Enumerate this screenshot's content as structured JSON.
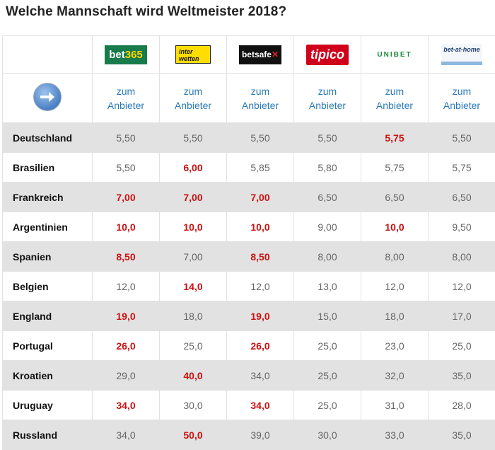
{
  "title": "Welche Mannschaft wird Weltmeister 2018?",
  "bookmakers": [
    {
      "name": "bet365",
      "logo_text": "bet365"
    },
    {
      "name": "interwetten",
      "logo_text": "inter wetten"
    },
    {
      "name": "betsafe",
      "logo_text": "betsafe"
    },
    {
      "name": "tipico",
      "logo_text": "tipico"
    },
    {
      "name": "unibet",
      "logo_text": "UNIBET"
    },
    {
      "name": "bet-at-home",
      "logo_text": "bet-at-home"
    }
  ],
  "link_line1": "zum",
  "link_line2": "Anbieter",
  "arrow_icon": "arrow-right-icon",
  "highlight_color": "#cc1111",
  "rows": [
    {
      "team": "Deutschland",
      "odds": [
        "5,50",
        "5,50",
        "5,50",
        "5,50",
        "5,75",
        "5,50"
      ],
      "best": [
        false,
        false,
        false,
        false,
        true,
        false
      ]
    },
    {
      "team": "Brasilien",
      "odds": [
        "5,50",
        "6,00",
        "5,85",
        "5,80",
        "5,75",
        "5,75"
      ],
      "best": [
        false,
        true,
        false,
        false,
        false,
        false
      ]
    },
    {
      "team": "Frankreich",
      "odds": [
        "7,00",
        "7,00",
        "7,00",
        "6,50",
        "6,50",
        "6,50"
      ],
      "best": [
        true,
        true,
        true,
        false,
        false,
        false
      ]
    },
    {
      "team": "Argentinien",
      "odds": [
        "10,0",
        "10,0",
        "10,0",
        "9,00",
        "10,0",
        "9,50"
      ],
      "best": [
        true,
        true,
        true,
        false,
        true,
        false
      ]
    },
    {
      "team": "Spanien",
      "odds": [
        "8,50",
        "7,00",
        "8,50",
        "8,00",
        "8,00",
        "8,00"
      ],
      "best": [
        true,
        false,
        true,
        false,
        false,
        false
      ]
    },
    {
      "team": "Belgien",
      "odds": [
        "12,0",
        "14,0",
        "12,0",
        "13,0",
        "12,0",
        "12,0"
      ],
      "best": [
        false,
        true,
        false,
        false,
        false,
        false
      ]
    },
    {
      "team": "England",
      "odds": [
        "19,0",
        "18,0",
        "19,0",
        "15,0",
        "18,0",
        "17,0"
      ],
      "best": [
        true,
        false,
        true,
        false,
        false,
        false
      ]
    },
    {
      "team": "Portugal",
      "odds": [
        "26,0",
        "25,0",
        "26,0",
        "25,0",
        "23,0",
        "25,0"
      ],
      "best": [
        true,
        false,
        true,
        false,
        false,
        false
      ]
    },
    {
      "team": "Kroatien",
      "odds": [
        "29,0",
        "40,0",
        "34,0",
        "25,0",
        "32,0",
        "35,0"
      ],
      "best": [
        false,
        true,
        false,
        false,
        false,
        false
      ]
    },
    {
      "team": "Uruguay",
      "odds": [
        "34,0",
        "30,0",
        "34,0",
        "25,0",
        "31,0",
        "28,0"
      ],
      "best": [
        true,
        false,
        true,
        false,
        false,
        false
      ]
    },
    {
      "team": "Russland",
      "odds": [
        "34,0",
        "50,0",
        "39,0",
        "30,0",
        "33,0",
        "35,0"
      ],
      "best": [
        false,
        true,
        false,
        false,
        false,
        false
      ]
    }
  ]
}
